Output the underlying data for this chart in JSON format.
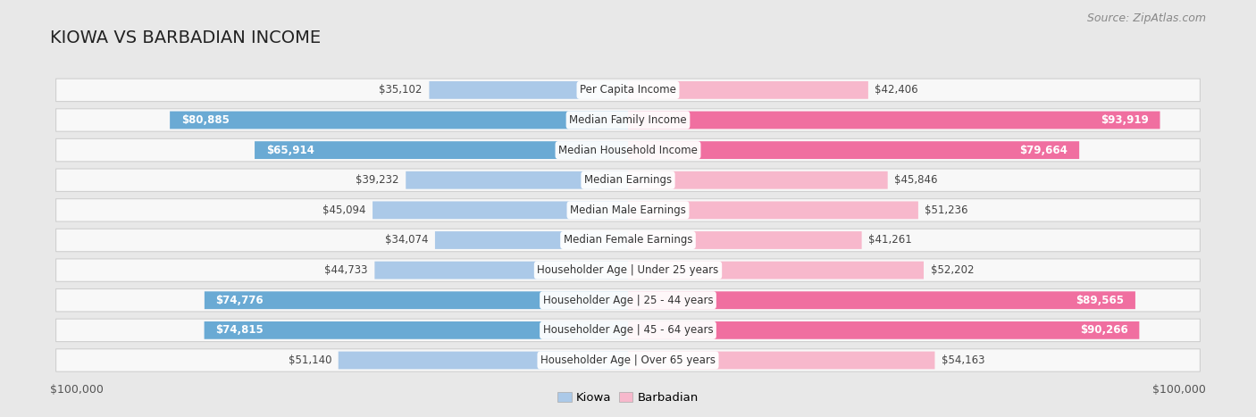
{
  "title": "KIOWA VS BARBADIAN INCOME",
  "source": "Source: ZipAtlas.com",
  "categories": [
    "Per Capita Income",
    "Median Family Income",
    "Median Household Income",
    "Median Earnings",
    "Median Male Earnings",
    "Median Female Earnings",
    "Householder Age | Under 25 years",
    "Householder Age | 25 - 44 years",
    "Householder Age | 45 - 64 years",
    "Householder Age | Over 65 years"
  ],
  "kiowa_values": [
    35102,
    80885,
    65914,
    39232,
    45094,
    34074,
    44733,
    74776,
    74815,
    51140
  ],
  "barbadian_values": [
    42406,
    93919,
    79664,
    45846,
    51236,
    41261,
    52202,
    89565,
    90266,
    54163
  ],
  "kiowa_color_light": "#abc9e8",
  "kiowa_color_bold": "#6aaad4",
  "barbadian_color_light": "#f7b8cc",
  "barbadian_color_bold": "#f06fa0",
  "bold_threshold": 60000,
  "max_value": 100000,
  "figure_bg": "#e8e8e8",
  "chart_bg": "#ffffff",
  "row_bg": "#f5f5f5",
  "legend_kiowa": "Kiowa",
  "legend_barbadian": "Barbadian",
  "xlabel_left": "$100,000",
  "xlabel_right": "$100,000",
  "title_fontsize": 14,
  "source_fontsize": 9,
  "category_fontsize": 8.5,
  "value_fontsize": 8.5
}
